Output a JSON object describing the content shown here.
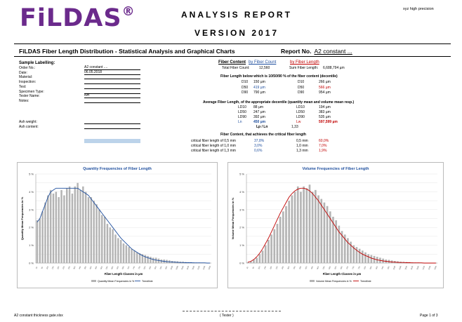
{
  "header": {
    "logo": "FiLDAS",
    "logo_mark": "®",
    "title": "ANALYSIS REPORT",
    "version": "VERSION 2017",
    "right_note": "xyz high precision"
  },
  "main_title": "FiLDAS Fiber Length Distribution - Statistical Analysis and Graphical Charts",
  "report_no": {
    "label": "Report No.",
    "value": "A2 constant ..."
  },
  "sample": {
    "heading": "Sample Labelling:",
    "fields": [
      {
        "label": "Order No.:",
        "value": "A2 constant ...."
      },
      {
        "label": "Date:",
        "value": "06.05.2018"
      },
      {
        "label": "Material:",
        "value": ""
      },
      {
        "label": "Inspection:",
        "value": ""
      },
      {
        "label": "Test:",
        "value": ""
      },
      {
        "label": "Specimen Type:",
        "value": ""
      },
      {
        "label": "Tester Name:",
        "value": "NH"
      },
      {
        "label": "Notes:",
        "value": ""
      }
    ],
    "ash_weight_label": "Ash weight:",
    "ash_content_label": "Ash content:"
  },
  "stats": {
    "by_count": "by Fiber Count",
    "by_length": "by Fiber Length",
    "fiber_content": "Fiber Content",
    "total_count_label": "Total Fiber Count:",
    "total_count_value": "12,560",
    "sum_length_label": "Sum Fiber Length:",
    "sum_length_value": "6,688,794 µm",
    "decile_heading": "Fiber Length below which is 10/50/90 % of the fiber content (decentile)",
    "deciles_left": [
      {
        "k": "D10",
        "v": "150 µm"
      },
      {
        "k": "D50",
        "v": "419 µm"
      },
      {
        "k": "D90",
        "v": "790 µm"
      }
    ],
    "deciles_right": [
      {
        "k": "D10",
        "v": "266 µm"
      },
      {
        "k": "D50",
        "v": "566 µm"
      },
      {
        "k": "D90",
        "v": "954 µm"
      }
    ],
    "avg_heading": "Average Fiber Length,      of the appropriate decentile (quantity mean and volume mean resp.)",
    "avg_left": [
      {
        "k": "LD10",
        "v": "88 µm"
      },
      {
        "k": "LD50",
        "v": "247 µm"
      },
      {
        "k": "LD90",
        "v": "392 µm"
      },
      {
        "k": "Ln",
        "v": "450 µm"
      }
    ],
    "avg_right": [
      {
        "k": "LD10",
        "v": "194 µm"
      },
      {
        "k": "LD50",
        "v": "383 µm"
      },
      {
        "k": "LD90",
        "v": "535 µm"
      },
      {
        "k": "Lw",
        "v": "597,599 µm"
      }
    ],
    "ratio_label": "Lp / Ln",
    "ratio_value": "1,33",
    "critical_heading": "Fiber Content, that achieves the critical fiber length",
    "critical": [
      {
        "label": "critical fiber length of 0,5 mm",
        "left": "37,8%",
        "mm": "0,5 mm",
        "right": "60,0%"
      },
      {
        "label": "critical fiber length of 1,0 mm",
        "left": "3,0%",
        "mm": "1,0 mm",
        "right": "7,0%"
      },
      {
        "label": "critical fiber length of 1,3 mm",
        "left": "0,6%",
        "mm": "1,3 mm",
        "right": "1,9%"
      }
    ]
  },
  "chart_data": [
    {
      "type": "bar",
      "title": "Quantity Frequencies of Fiber Length",
      "xlabel": "Fiber Length Classes in µm",
      "ylabel": "Quantity Mean Frequencies in %",
      "yticks": [
        "0 %",
        "0.5 %",
        "1 %",
        "1.5 %",
        "2 %",
        "2.5 %",
        "3 %",
        "3.5 %",
        "4 %",
        "4.5 %",
        "5 %"
      ],
      "ylim": [
        0,
        5
      ],
      "legend": [
        "Quantity Mean Frequencies in %",
        "Trendlinie"
      ],
      "trend_color": "#1f4f9e",
      "bar_color": "#b4b4b4",
      "values": [
        2.4,
        2.5,
        2.9,
        3.4,
        3.8,
        4.1,
        3.9,
        4.0,
        3.7,
        4.1,
        3.8,
        4.2,
        4.3,
        3.9,
        4.3,
        4.5,
        4.1,
        4.3,
        4.0,
        3.7,
        3.7,
        3.5,
        3.3,
        3.0,
        2.7,
        2.6,
        2.2,
        2.0,
        1.9,
        1.6,
        1.4,
        1.3,
        1.1,
        1.0,
        0.9,
        0.8,
        0.7,
        0.6,
        0.55,
        0.5,
        0.45,
        0.4,
        0.35,
        0.3,
        0.3,
        0.25,
        0.2,
        0.2,
        0.18,
        0.15,
        0.12,
        0.1,
        0.1,
        0.08,
        0.08,
        0.06,
        0.05,
        0.05,
        0.04,
        0.03,
        0.03,
        0.02,
        0.02,
        0.02,
        0.01
      ],
      "trend": [
        2.3,
        2.5,
        2.9,
        3.3,
        3.7,
        4.0,
        4.1,
        4.2,
        4.2,
        4.2,
        4.2,
        4.2,
        4.2,
        4.2,
        4.2,
        4.2,
        4.1,
        4.0,
        3.9,
        3.8,
        3.6,
        3.4,
        3.2,
        3.0,
        2.8,
        2.6,
        2.4,
        2.2,
        2.0,
        1.8,
        1.6,
        1.4,
        1.25,
        1.1,
        0.95,
        0.8,
        0.7,
        0.6,
        0.5,
        0.42,
        0.35,
        0.3,
        0.25,
        0.2,
        0.17,
        0.14,
        0.12,
        0.1,
        0.08,
        0.07,
        0.06,
        0.05,
        0.04,
        0.03,
        0.03,
        0.02,
        0.02,
        0.02,
        0.01,
        0.01,
        0.01,
        0.01,
        0.01,
        0.0,
        0.0
      ]
    },
    {
      "type": "bar",
      "title": "Volume Frequencies of Fiber Length",
      "xlabel": "Fiber Length Classes in µm",
      "ylabel": "Volume Mean Frequencies in %",
      "yticks": [
        "0 %",
        "0.5 %",
        "1 %",
        "1.5 %",
        "2 %",
        "2.5 %",
        "3 %",
        "3.5 %",
        "4 %",
        "4.5 %",
        "5 %"
      ],
      "ylim": [
        0,
        5
      ],
      "legend": [
        "Volume Mean Frequencies in %",
        "Trendlinie"
      ],
      "trend_color": "#c00000",
      "bar_color": "#b4b4b4",
      "values": [
        0.05,
        0.1,
        0.2,
        0.3,
        0.5,
        0.7,
        1.0,
        1.3,
        1.6,
        1.9,
        2.2,
        2.6,
        2.9,
        3.2,
        3.5,
        3.8,
        4.0,
        4.3,
        4.0,
        4.3,
        4.2,
        4.4,
        4.0,
        4.1,
        3.8,
        3.6,
        3.4,
        3.2,
        2.9,
        2.6,
        2.4,
        2.1,
        1.8,
        1.6,
        1.4,
        1.2,
        1.0,
        0.9,
        0.8,
        0.7,
        0.6,
        0.5,
        0.45,
        0.4,
        0.35,
        0.3,
        0.25,
        0.2,
        0.18,
        0.15,
        0.12,
        0.1,
        0.08,
        0.07,
        0.06,
        0.05,
        0.04,
        0.03,
        0.03,
        0.02,
        0.02,
        0.02,
        0.01,
        0.01,
        0.01
      ],
      "trend": [
        0.05,
        0.1,
        0.2,
        0.35,
        0.55,
        0.8,
        1.1,
        1.4,
        1.75,
        2.1,
        2.45,
        2.8,
        3.1,
        3.4,
        3.7,
        3.9,
        4.05,
        4.15,
        4.2,
        4.2,
        4.15,
        4.05,
        3.9,
        3.7,
        3.5,
        3.25,
        3.0,
        2.75,
        2.5,
        2.25,
        2.0,
        1.75,
        1.55,
        1.35,
        1.15,
        1.0,
        0.85,
        0.72,
        0.6,
        0.5,
        0.42,
        0.35,
        0.28,
        0.23,
        0.18,
        0.15,
        0.12,
        0.1,
        0.08,
        0.06,
        0.05,
        0.04,
        0.03,
        0.03,
        0.02,
        0.02,
        0.01,
        0.01,
        0.01,
        0.01,
        0.0,
        0.0,
        0.0,
        0.0,
        0.0
      ]
    }
  ],
  "footer": {
    "left": "A2 constant thickness gate.xlsx",
    "center": "( Tester )",
    "right": "Page 1 of 3"
  }
}
